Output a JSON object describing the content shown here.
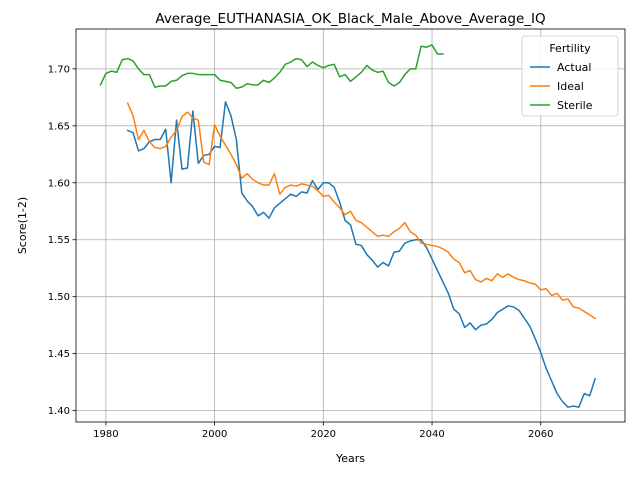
{
  "chart_data": {
    "type": "line",
    "title": "Average_EUTHANASIA_OK_Black_Male_Above_Average_IQ",
    "xlabel": "Years",
    "ylabel": "Score(1-2)",
    "xlim": [
      1974.5,
      2075.5
    ],
    "ylim": [
      1.39,
      1.735
    ],
    "xticks": [
      1980,
      2000,
      2020,
      2040,
      2060
    ],
    "yticks": [
      1.4,
      1.45,
      1.5,
      1.55,
      1.6,
      1.65,
      1.7
    ],
    "ytick_labels": [
      "1.40",
      "1.45",
      "1.50",
      "1.55",
      "1.60",
      "1.65",
      "1.70"
    ],
    "grid": true,
    "legend": {
      "title": "Fertility",
      "placement": "top-right"
    },
    "series": [
      {
        "name": "Actual",
        "color": "#1f77b4",
        "x": [
          1984,
          1985,
          1986,
          1987,
          1988,
          1989,
          1990,
          1991,
          1992,
          1993,
          1994,
          1995,
          1996,
          1997,
          1998,
          1999,
          2000,
          2001,
          2002,
          2003,
          2004,
          2005,
          2006,
          2007,
          2008,
          2009,
          2010,
          2011,
          2012,
          2013,
          2014,
          2015,
          2016,
          2017,
          2018,
          2019,
          2020,
          2021,
          2022,
          2023,
          2024,
          2025,
          2026,
          2027,
          2028,
          2029,
          2030,
          2031,
          2032,
          2033,
          2034,
          2035,
          2036,
          2037,
          2038,
          2039,
          2040,
          2041,
          2042,
          2043,
          2044,
          2045,
          2046,
          2047,
          2048,
          2049,
          2050,
          2051,
          2052,
          2053,
          2054,
          2055,
          2056,
          2057,
          2058,
          2059,
          2060,
          2061,
          2062,
          2063,
          2064,
          2065,
          2066,
          2067,
          2068,
          2069,
          2070
        ],
        "y": [
          1.646,
          1.644,
          1.628,
          1.63,
          1.636,
          1.638,
          1.638,
          1.647,
          1.6,
          1.655,
          1.612,
          1.613,
          1.663,
          1.617,
          1.624,
          1.625,
          1.632,
          1.631,
          1.671,
          1.659,
          1.638,
          1.591,
          1.584,
          1.579,
          1.571,
          1.574,
          1.569,
          1.578,
          1.582,
          1.586,
          1.59,
          1.588,
          1.592,
          1.591,
          1.602,
          1.594,
          1.6,
          1.6,
          1.596,
          1.583,
          1.567,
          1.563,
          1.546,
          1.545,
          1.537,
          1.532,
          1.526,
          1.53,
          1.527,
          1.539,
          1.54,
          1.547,
          1.549,
          1.55,
          1.55,
          1.543,
          1.533,
          1.523,
          1.513,
          1.503,
          1.489,
          1.485,
          1.473,
          1.477,
          1.471,
          1.475,
          1.476,
          1.48,
          1.486,
          1.489,
          1.492,
          1.491,
          1.488,
          1.481,
          1.474,
          1.463,
          1.451,
          1.437,
          1.426,
          1.415,
          1.408,
          1.403,
          1.404,
          1.403,
          1.415,
          1.413,
          1.428
        ]
      },
      {
        "name": "Ideal",
        "color": "#ff7f0e",
        "x": [
          1984,
          1985,
          1986,
          1987,
          1988,
          1989,
          1990,
          1991,
          1992,
          1993,
          1994,
          1995,
          1996,
          1997,
          1998,
          1999,
          2000,
          2001,
          2002,
          2003,
          2004,
          2005,
          2006,
          2007,
          2008,
          2009,
          2010,
          2011,
          2012,
          2013,
          2014,
          2015,
          2016,
          2017,
          2018,
          2019,
          2020,
          2021,
          2022,
          2023,
          2024,
          2025,
          2026,
          2027,
          2028,
          2029,
          2030,
          2031,
          2032,
          2033,
          2034,
          2035,
          2036,
          2037,
          2038,
          2039,
          2040,
          2041,
          2042,
          2043,
          2044,
          2045,
          2046,
          2047,
          2048,
          2049,
          2050,
          2051,
          2052,
          2053,
          2054,
          2055,
          2056,
          2057,
          2058,
          2059,
          2060,
          2061,
          2062,
          2063,
          2064,
          2065,
          2066,
          2067,
          2068,
          2069,
          2070
        ],
        "y": [
          1.67,
          1.659,
          1.638,
          1.646,
          1.636,
          1.631,
          1.63,
          1.632,
          1.64,
          1.646,
          1.658,
          1.662,
          1.657,
          1.655,
          1.618,
          1.616,
          1.651,
          1.641,
          1.633,
          1.625,
          1.616,
          1.604,
          1.608,
          1.603,
          1.6,
          1.598,
          1.598,
          1.608,
          1.59,
          1.596,
          1.598,
          1.597,
          1.599,
          1.598,
          1.597,
          1.593,
          1.588,
          1.589,
          1.583,
          1.578,
          1.572,
          1.575,
          1.567,
          1.565,
          1.561,
          1.557,
          1.553,
          1.554,
          1.553,
          1.557,
          1.56,
          1.565,
          1.557,
          1.554,
          1.547,
          1.546,
          1.545,
          1.544,
          1.542,
          1.539,
          1.533,
          1.53,
          1.521,
          1.523,
          1.515,
          1.513,
          1.516,
          1.514,
          1.52,
          1.517,
          1.52,
          1.517,
          1.515,
          1.514,
          1.512,
          1.511,
          1.506,
          1.507,
          1.501,
          1.503,
          1.497,
          1.498,
          1.491,
          1.49,
          1.487,
          1.484,
          1.481
        ]
      },
      {
        "name": "Sterile",
        "color": "#2ca02c",
        "x": [
          1979,
          1980,
          1981,
          1982,
          1983,
          1984,
          1985,
          1986,
          1987,
          1988,
          1989,
          1990,
          1991,
          1992,
          1993,
          1994,
          1995,
          1996,
          1997,
          1998,
          1999,
          2000,
          2001,
          2002,
          2003,
          2004,
          2005,
          2006,
          2007,
          2008,
          2009,
          2010,
          2011,
          2012,
          2013,
          2014,
          2015,
          2016,
          2017,
          2018,
          2019,
          2020,
          2021,
          2022,
          2023,
          2024,
          2025,
          2026,
          2027,
          2028,
          2029,
          2030,
          2031,
          2032,
          2033,
          2034,
          2035,
          2036,
          2037,
          2038,
          2039,
          2040,
          2041,
          2042
        ],
        "y": [
          1.686,
          1.696,
          1.698,
          1.697,
          1.708,
          1.709,
          1.707,
          1.7,
          1.695,
          1.695,
          1.684,
          1.685,
          1.685,
          1.689,
          1.69,
          1.694,
          1.696,
          1.696,
          1.695,
          1.695,
          1.695,
          1.695,
          1.69,
          1.689,
          1.688,
          1.683,
          1.684,
          1.687,
          1.686,
          1.686,
          1.69,
          1.688,
          1.692,
          1.697,
          1.704,
          1.706,
          1.709,
          1.708,
          1.702,
          1.706,
          1.703,
          1.701,
          1.703,
          1.704,
          1.693,
          1.695,
          1.689,
          1.693,
          1.697,
          1.703,
          1.699,
          1.697,
          1.698,
          1.688,
          1.685,
          1.688,
          1.695,
          1.7,
          1.7,
          1.72,
          1.719,
          1.721,
          1.713,
          1.713
        ]
      }
    ]
  }
}
